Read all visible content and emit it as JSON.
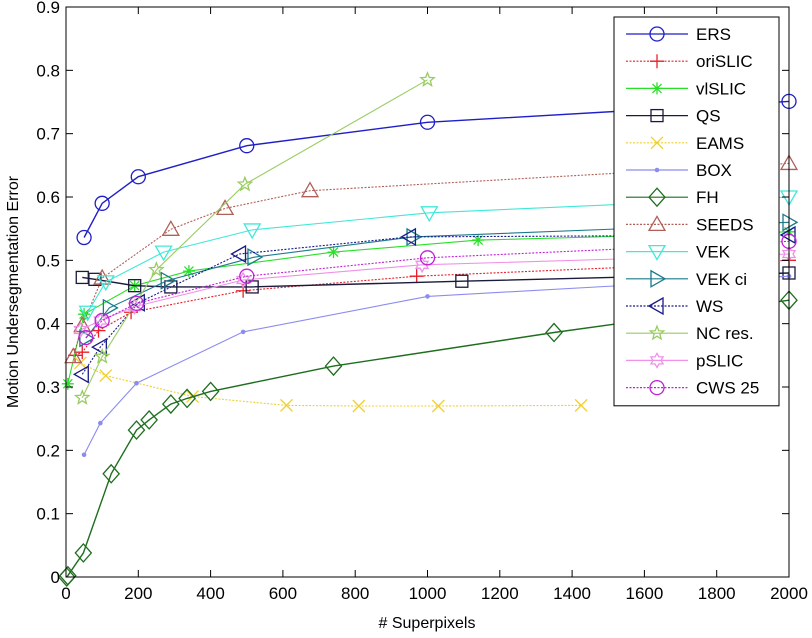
{
  "chart_data": {
    "type": "line",
    "title": "",
    "xlabel": "# Superpixels",
    "ylabel": "Motion Undersegmentation Error",
    "xlim": [
      0,
      2000
    ],
    "ylim": [
      0,
      0.9
    ],
    "xticks": [
      "0",
      "200",
      "400",
      "600",
      "800",
      "1000",
      "1200",
      "1400",
      "1600",
      "1800",
      "2000"
    ],
    "xtick_values": [
      0,
      200,
      400,
      600,
      800,
      1000,
      1200,
      1400,
      1600,
      1800,
      2000
    ],
    "yticks": [
      "0",
      "0.1",
      "0.2",
      "0.3",
      "0.4",
      "0.5",
      "0.6",
      "0.7",
      "0.8",
      "0.9"
    ],
    "ytick_values": [
      0,
      0.1,
      0.2,
      0.3,
      0.4,
      0.5,
      0.6,
      0.7,
      0.8,
      0.9
    ],
    "grid": false,
    "legend_position": "top-right",
    "series": [
      {
        "name": "ERS",
        "color": "#1f1fc8",
        "dash": "solid",
        "marker": "circle",
        "x": [
          50,
          100,
          200,
          500,
          1000,
          2000
        ],
        "y": [
          0.536,
          0.59,
          0.632,
          0.681,
          0.718,
          0.751
        ]
      },
      {
        "name": "oriSLIC",
        "color": "#e8202a",
        "dash": "dotted",
        "marker": "plus",
        "x": [
          25,
          45,
          90,
          180,
          490,
          970,
          2000
        ],
        "y": [
          0.35,
          0.355,
          0.389,
          0.418,
          0.452,
          0.475,
          0.5
        ]
      },
      {
        "name": "vlSLIC",
        "color": "#28e028",
        "dash": "solid",
        "marker": "asterisk",
        "x": [
          5,
          50,
          190,
          340,
          740,
          1140,
          2000
        ],
        "y": [
          0.305,
          0.415,
          0.46,
          0.483,
          0.513,
          0.532,
          0.545
        ]
      },
      {
        "name": "QS",
        "color": "#1a1a3c",
        "dash": "solid",
        "marker": "square",
        "x": [
          45,
          80,
          190,
          290,
          515,
          1095,
          2000
        ],
        "y": [
          0.473,
          0.47,
          0.46,
          0.458,
          0.458,
          0.467,
          0.48
        ]
      },
      {
        "name": "EAMS",
        "color": "#f0d030",
        "dash": "dotted",
        "marker": "x",
        "x": [
          40,
          110,
          350,
          610,
          810,
          1030,
          1425
        ],
        "y": [
          0.338,
          0.318,
          0.285,
          0.271,
          0.27,
          0.27,
          0.271
        ]
      },
      {
        "name": "BOX",
        "color": "#8c8cf0",
        "dash": "solid",
        "marker": "dot",
        "x": [
          50,
          95,
          195,
          490,
          1000,
          2000
        ],
        "y": [
          0.193,
          0.243,
          0.306,
          0.387,
          0.443,
          0.475
        ]
      },
      {
        "name": "FH",
        "color": "#1e6e1e",
        "dash": "solid",
        "marker": "diamond",
        "x": [
          2,
          5,
          48,
          125,
          195,
          230,
          290,
          335,
          400,
          740,
          1350,
          2000
        ],
        "y": [
          0.0,
          0.002,
          0.038,
          0.163,
          0.232,
          0.248,
          0.273,
          0.282,
          0.293,
          0.333,
          0.386,
          0.437
        ]
      },
      {
        "name": "SEEDS",
        "color": "#b06058",
        "dash": "dotted",
        "marker": "triangle-up",
        "x": [
          20,
          45,
          100,
          290,
          440,
          675,
          2000
        ],
        "y": [
          0.348,
          0.397,
          0.472,
          0.549,
          0.582,
          0.61,
          0.653
        ]
      },
      {
        "name": "VEK",
        "color": "#40e8d8",
        "dash": "solid",
        "marker": "triangle-down",
        "x": [
          60,
          110,
          270,
          515,
          1005,
          2000
        ],
        "y": [
          0.418,
          0.466,
          0.513,
          0.548,
          0.575,
          0.6
        ]
      },
      {
        "name": "VEK ci",
        "color": "#1a7a8a",
        "dash": "solid",
        "marker": "triangle-right",
        "x": [
          55,
          120,
          280,
          520,
          960,
          2000
        ],
        "y": [
          0.377,
          0.425,
          0.468,
          0.505,
          0.537,
          0.56
        ]
      },
      {
        "name": "WS",
        "color": "#1a1a8c",
        "dash": "dotted",
        "marker": "triangle-left",
        "x": [
          45,
          95,
          200,
          480,
          950,
          2000
        ],
        "y": [
          0.32,
          0.363,
          0.433,
          0.51,
          0.537,
          0.54
        ]
      },
      {
        "name": "NC res.",
        "color": "#98cc60",
        "dash": "solid",
        "marker": "star",
        "x": [
          45,
          100,
          250,
          495,
          1000
        ],
        "y": [
          0.283,
          0.348,
          0.485,
          0.62,
          0.785
        ]
      },
      {
        "name": "pSLIC",
        "color": "#f090e8",
        "dash": "solid",
        "marker": "hexagram",
        "x": [
          40,
          95,
          190,
          490,
          985,
          2000
        ],
        "y": [
          0.39,
          0.405,
          0.427,
          0.469,
          0.493,
          0.51
        ]
      },
      {
        "name": "CWS 25",
        "color": "#c020d8",
        "dash": "dotted",
        "marker": "circle",
        "x": [
          55,
          100,
          195,
          500,
          1000,
          2000
        ],
        "y": [
          0.378,
          0.405,
          0.432,
          0.475,
          0.504,
          0.53
        ]
      }
    ]
  }
}
